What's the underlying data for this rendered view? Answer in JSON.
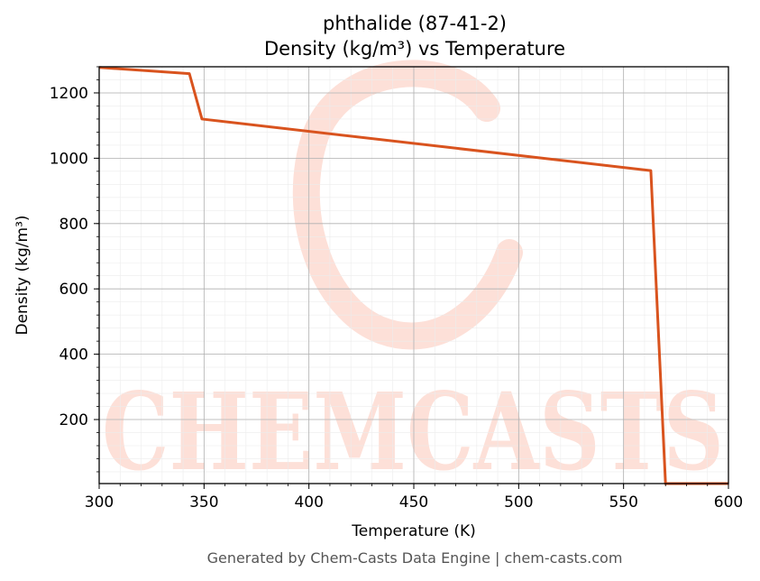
{
  "chart_data": {
    "type": "line",
    "title_line1": "phthalide (87-41-2)",
    "title_line2": "Density (kg/m³) vs Temperature",
    "xlabel": "Temperature (K)",
    "ylabel": "Density (kg/m³)",
    "xlim": [
      300,
      600
    ],
    "ylim": [
      4,
      1280
    ],
    "x_ticks": [
      300,
      350,
      400,
      450,
      500,
      550,
      600
    ],
    "y_ticks": [
      200,
      400,
      600,
      800,
      1000,
      1200
    ],
    "grid": true,
    "series": [
      {
        "color": "#d9531e",
        "x": [
          300,
          343,
          349,
          563,
          570,
          600
        ],
        "y": [
          1278,
          1259,
          1120,
          962,
          4,
          4
        ]
      }
    ]
  },
  "watermark": {
    "text": "CHEMCASTS",
    "color": "#fde0d8"
  },
  "footer": "Generated by Chem-Casts Data Engine | chem-casts.com"
}
